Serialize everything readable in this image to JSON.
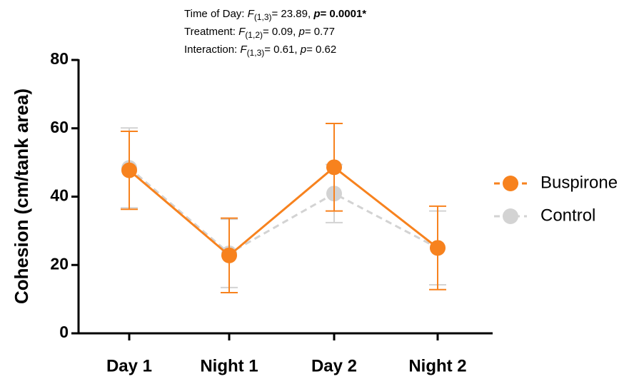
{
  "chart_data": {
    "type": "line",
    "y_label": "Cohesion (cm/tank area)",
    "annotations": [
      [
        {
          "text": "Time of Day: "
        },
        {
          "text": "F",
          "style": "italic"
        },
        {
          "text": "(1,3)",
          "style": "sub"
        },
        {
          "text": "= 23.89, "
        },
        {
          "text": "p",
          "style": "bold-italic"
        },
        {
          "text": "= 0.0001*",
          "style": "bold"
        }
      ],
      [
        {
          "text": "Treatment: "
        },
        {
          "text": "F",
          "style": "italic"
        },
        {
          "text": "(1,2)",
          "style": "sub"
        },
        {
          "text": "= 0.09, "
        },
        {
          "text": "p",
          "style": "italic"
        },
        {
          "text": "= 0.77"
        }
      ],
      [
        {
          "text": "Interaction: "
        },
        {
          "text": "F",
          "style": "italic"
        },
        {
          "text": "(1,3)",
          "style": "sub"
        },
        {
          "text": "= 0.61, "
        },
        {
          "text": "p",
          "style": "italic"
        },
        {
          "text": "= 0.62"
        }
      ]
    ],
    "categories": [
      "Day 1",
      "Night 1",
      "Day 2",
      "Night 2"
    ],
    "series": [
      {
        "name": "Control",
        "color": "#d3d3d3",
        "dashed": true,
        "values": [
          48.4,
          23.4,
          40.9,
          25
        ],
        "errors": [
          11.7,
          10,
          8.5,
          10.8
        ]
      },
      {
        "name": "Buspirone",
        "color": "#f7821e",
        "dashed": false,
        "values": [
          47.7,
          22.8,
          48.6,
          25
        ],
        "errors": [
          11.4,
          10.9,
          12.8,
          12.2
        ]
      }
    ],
    "ylim": [
      0,
      80
    ],
    "yticks": [
      0,
      20,
      40,
      60,
      80
    ],
    "legend": "right"
  }
}
